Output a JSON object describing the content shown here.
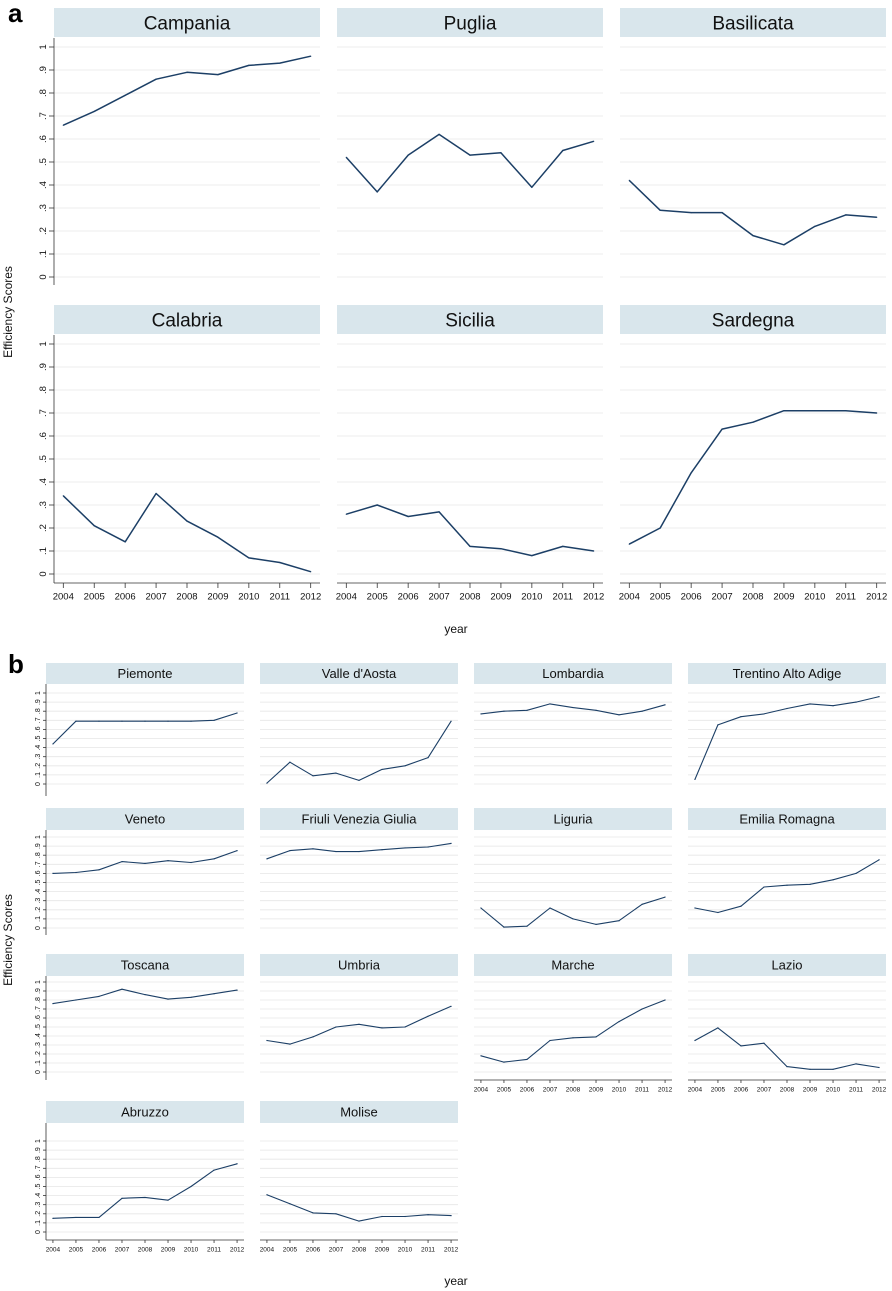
{
  "colors": {
    "line": "#1c3f66",
    "panel_header": "#d9e6ec",
    "grid": "#e6e6e6",
    "axis": "#333333",
    "text": "#111111"
  },
  "chart_data": [
    {
      "panel_label": "a",
      "type": "line",
      "layout": "small-multiples 3x2",
      "ylabel": "Efficiency Scores",
      "xlabel": "year",
      "x": [
        "2004",
        "2005",
        "2006",
        "2007",
        "2008",
        "2009",
        "2010",
        "2011",
        "2012"
      ],
      "ylim": [
        0,
        1
      ],
      "yticks": [
        "0",
        ".1",
        ".2",
        ".3",
        ".4",
        ".5",
        ".6",
        ".7",
        ".8",
        ".9",
        "1"
      ],
      "grid": true,
      "series": [
        {
          "name": "Campania",
          "values": [
            0.66,
            0.72,
            0.79,
            0.86,
            0.89,
            0.88,
            0.92,
            0.93,
            0.96
          ]
        },
        {
          "name": "Puglia",
          "values": [
            0.52,
            0.37,
            0.53,
            0.62,
            0.53,
            0.54,
            0.39,
            0.55,
            0.59
          ]
        },
        {
          "name": "Basilicata",
          "values": [
            0.42,
            0.29,
            0.28,
            0.28,
            0.18,
            0.14,
            0.22,
            0.27,
            0.26
          ]
        },
        {
          "name": "Calabria",
          "values": [
            0.34,
            0.21,
            0.14,
            0.35,
            0.23,
            0.16,
            0.07,
            0.05,
            0.01
          ]
        },
        {
          "name": "Sicilia",
          "values": [
            0.26,
            0.3,
            0.25,
            0.27,
            0.12,
            0.11,
            0.08,
            0.12,
            0.1
          ]
        },
        {
          "name": "Sardegna",
          "values": [
            0.13,
            0.2,
            0.44,
            0.63,
            0.66,
            0.71,
            0.71,
            0.71,
            0.7
          ]
        }
      ]
    },
    {
      "panel_label": "b",
      "type": "line",
      "layout": "small-multiples 4x4",
      "ylabel": "Efficiency Scores",
      "xlabel": "year",
      "x": [
        "2004",
        "2005",
        "2006",
        "2007",
        "2008",
        "2009",
        "2010",
        "2011",
        "2012"
      ],
      "ylim": [
        0,
        1
      ],
      "yticks": [
        "0",
        ".1",
        ".2",
        ".3",
        ".4",
        ".5",
        ".6",
        ".7",
        ".8",
        ".9",
        "1"
      ],
      "grid": true,
      "series": [
        {
          "name": "Piemonte",
          "values": [
            0.44,
            0.69,
            0.69,
            0.69,
            0.69,
            0.69,
            0.69,
            0.7,
            0.78
          ]
        },
        {
          "name": "Valle d'Aosta",
          "values": [
            0.01,
            0.24,
            0.09,
            0.12,
            0.04,
            0.16,
            0.2,
            0.29,
            0.69
          ]
        },
        {
          "name": "Lombardia",
          "values": [
            0.77,
            0.8,
            0.81,
            0.88,
            0.84,
            0.81,
            0.76,
            0.8,
            0.87
          ]
        },
        {
          "name": "Trentino Alto Adige",
          "values": [
            0.05,
            0.65,
            0.74,
            0.77,
            0.83,
            0.88,
            0.86,
            0.9,
            0.96
          ]
        },
        {
          "name": "Veneto",
          "values": [
            0.6,
            0.61,
            0.64,
            0.73,
            0.71,
            0.74,
            0.72,
            0.76,
            0.85
          ]
        },
        {
          "name": "Friuli Venezia Giulia",
          "values": [
            0.76,
            0.85,
            0.87,
            0.84,
            0.84,
            0.86,
            0.88,
            0.89,
            0.93
          ]
        },
        {
          "name": "Liguria",
          "values": [
            0.22,
            0.01,
            0.02,
            0.22,
            0.1,
            0.04,
            0.08,
            0.26,
            0.34
          ]
        },
        {
          "name": "Emilia Romagna",
          "values": [
            0.22,
            0.17,
            0.24,
            0.45,
            0.47,
            0.48,
            0.53,
            0.6,
            0.75
          ]
        },
        {
          "name": "Toscana",
          "values": [
            0.76,
            0.8,
            0.84,
            0.92,
            0.86,
            0.81,
            0.83,
            0.87,
            0.91
          ]
        },
        {
          "name": "Umbria",
          "values": [
            0.35,
            0.31,
            0.39,
            0.5,
            0.53,
            0.49,
            0.5,
            0.62,
            0.73
          ]
        },
        {
          "name": "Marche",
          "values": [
            0.18,
            0.11,
            0.14,
            0.35,
            0.38,
            0.39,
            0.56,
            0.7,
            0.8
          ]
        },
        {
          "name": "Lazio",
          "values": [
            0.35,
            0.49,
            0.29,
            0.32,
            0.06,
            0.03,
            0.03,
            0.09,
            0.05
          ]
        },
        {
          "name": "Abruzzo",
          "values": [
            0.15,
            0.16,
            0.16,
            0.37,
            0.38,
            0.35,
            0.5,
            0.68,
            0.75
          ]
        },
        {
          "name": "Molise",
          "values": [
            0.41,
            0.31,
            0.21,
            0.2,
            0.12,
            0.17,
            0.17,
            0.19,
            0.18
          ]
        }
      ]
    }
  ]
}
